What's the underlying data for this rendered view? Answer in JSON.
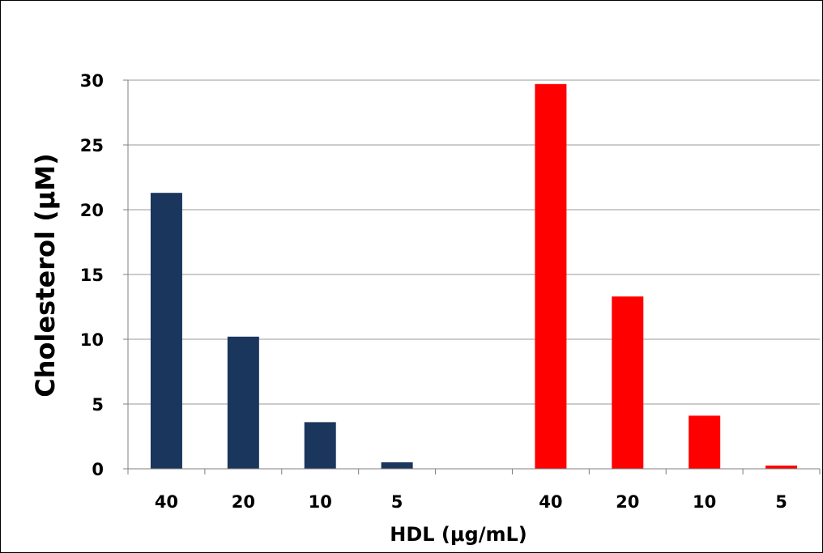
{
  "chart_data": {
    "type": "bar",
    "title": "",
    "xlabel": "HDL (μg/mL)",
    "ylabel": "Cholesterol (μM)",
    "ylim": [
      0,
      30
    ],
    "yticks": [
      0,
      5,
      10,
      15,
      20,
      25,
      30
    ],
    "grid": true,
    "legend": "none",
    "categories": [
      "40",
      "20",
      "10",
      "5",
      "",
      "40",
      "20",
      "10",
      "5"
    ],
    "series": [
      {
        "color": "#1b365d",
        "values": [
          21.3,
          10.2,
          3.6,
          0.5,
          null,
          null,
          null,
          null,
          null
        ]
      },
      {
        "color": "#ff0000",
        "values": [
          null,
          null,
          null,
          null,
          null,
          29.7,
          13.3,
          4.1,
          0.25
        ]
      }
    ]
  }
}
